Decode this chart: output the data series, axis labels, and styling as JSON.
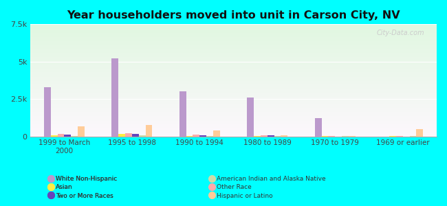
{
  "title": "Year householders moved into unit in Carson City, NV",
  "categories": [
    "1999 to March\n2000",
    "1995 to 1998",
    "1990 to 1994",
    "1980 to 1989",
    "1970 to 1979",
    "1969 or earlier"
  ],
  "series_order": [
    "White Non-Hispanic",
    "Asian",
    "Other Race",
    "Two or More Races",
    "American Indian and Alaska Native",
    "Hispanic or Latino"
  ],
  "series": {
    "White Non-Hispanic": [
      3300,
      5200,
      3000,
      2600,
      1200,
      0
    ],
    "Asian": [
      80,
      150,
      40,
      30,
      20,
      30
    ],
    "Other Race": [
      180,
      230,
      130,
      50,
      20,
      20
    ],
    "Two or More Races": [
      120,
      150,
      60,
      50,
      0,
      0
    ],
    "American Indian and Alaska Native": [
      30,
      50,
      20,
      10,
      10,
      10
    ],
    "Hispanic or Latino": [
      650,
      750,
      380,
      80,
      30,
      500
    ]
  },
  "colors": {
    "White Non-Hispanic": "#bb99cc",
    "Asian": "#ffee44",
    "Other Race": "#ffaaaa",
    "Two or More Races": "#6644bb",
    "American Indian and Alaska Native": "#ccddaa",
    "Hispanic or Latino": "#ffcc99"
  },
  "ylim": [
    0,
    7500
  ],
  "yticks": [
    0,
    2500,
    5000,
    7500
  ],
  "ytick_labels": [
    "0",
    "2.5k",
    "5k",
    "7.5k"
  ],
  "bg_color": "#00ffff",
  "watermark": "City-Data.com",
  "bar_width": 0.1,
  "legend_left": [
    "White Non-Hispanic",
    "Asian",
    "Two or More Races"
  ],
  "legend_right": [
    "American Indian and Alaska Native",
    "Other Race",
    "Hispanic or Latino"
  ]
}
